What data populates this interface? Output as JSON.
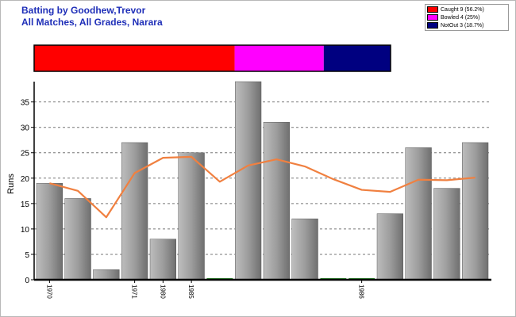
{
  "titles": {
    "line1": "Batting by Goodhew,Trevor",
    "line2": "All Matches, All Grades, Narara"
  },
  "legend": {
    "items": [
      {
        "label": "Caught 9 (56.2%)",
        "color": "#ff0000"
      },
      {
        "label": "Bowled 4 (25%)",
        "color": "#ff00ff"
      },
      {
        "label": "NotOut 3 (18.7%)",
        "color": "#000080"
      }
    ]
  },
  "chart_data": {
    "type": "bar",
    "ylabel": "Runs",
    "ylim": [
      0,
      39
    ],
    "yticks": [
      0,
      5,
      10,
      15,
      20,
      25,
      30,
      35
    ],
    "grid": true,
    "values": [
      19,
      16,
      2,
      27,
      8,
      25,
      0,
      39,
      31,
      12,
      0,
      0,
      13,
      26,
      18,
      27
    ],
    "x_tick_labels": [
      "1970",
      "",
      "",
      "1971",
      "1980",
      "1985",
      "",
      "",
      "",
      "",
      "",
      "1986",
      "",
      "",
      "",
      ""
    ],
    "zero_bar_color": "#2e8b2e",
    "line_series": {
      "color": "#f08040",
      "values": [
        19,
        17.5,
        12.3,
        21,
        24,
        24.2,
        19.3,
        22.5,
        23.7,
        22.3,
        19.8,
        17.7,
        17.3,
        19.7,
        19.6,
        20.1
      ]
    },
    "dismissal_strip": {
      "segments": [
        {
          "label": "Caught",
          "count": 9,
          "color": "#ff0000"
        },
        {
          "label": "Bowled",
          "count": 4,
          "color": "#ff00ff"
        },
        {
          "label": "NotOut",
          "count": 3,
          "color": "#000080"
        }
      ]
    }
  }
}
